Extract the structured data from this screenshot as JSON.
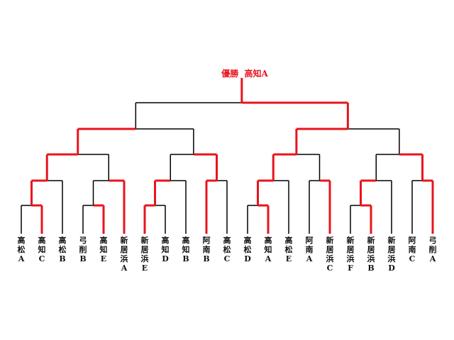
{
  "champion": {
    "label": "優勝",
    "team": "高知A"
  },
  "colors": {
    "winner": "#e8141c",
    "loser": "#000000"
  },
  "teams": [
    {
      "name": "高松A"
    },
    {
      "name": "高知C"
    },
    {
      "name": "高松B"
    },
    {
      "name": "弓削B"
    },
    {
      "name": "高知E"
    },
    {
      "name": "新居浜A"
    },
    {
      "name": "新居浜E"
    },
    {
      "name": "高知D"
    },
    {
      "name": "高知B"
    },
    {
      "name": "阿南B"
    },
    {
      "name": "高松C"
    },
    {
      "name": "高松D"
    },
    {
      "name": "高知A"
    },
    {
      "name": "高松E"
    },
    {
      "name": "阿南A"
    },
    {
      "name": "新居浜C"
    },
    {
      "name": "新居浜F"
    },
    {
      "name": "新居浜B"
    },
    {
      "name": "新居浜D"
    },
    {
      "name": "阿南C"
    },
    {
      "name": "弓削A"
    }
  ],
  "winners": [
    "leaf",
    "leaf",
    "leaf",
    "leaf",
    "leaf",
    "leaf",
    "leaf",
    "leaf",
    "leaf",
    "leaf",
    "leaf",
    "leaf",
    "leaf",
    "leaf",
    "leaf",
    "leaf",
    "leaf",
    "leaf",
    "leaf",
    "leaf",
    "leaf"
  ]
}
